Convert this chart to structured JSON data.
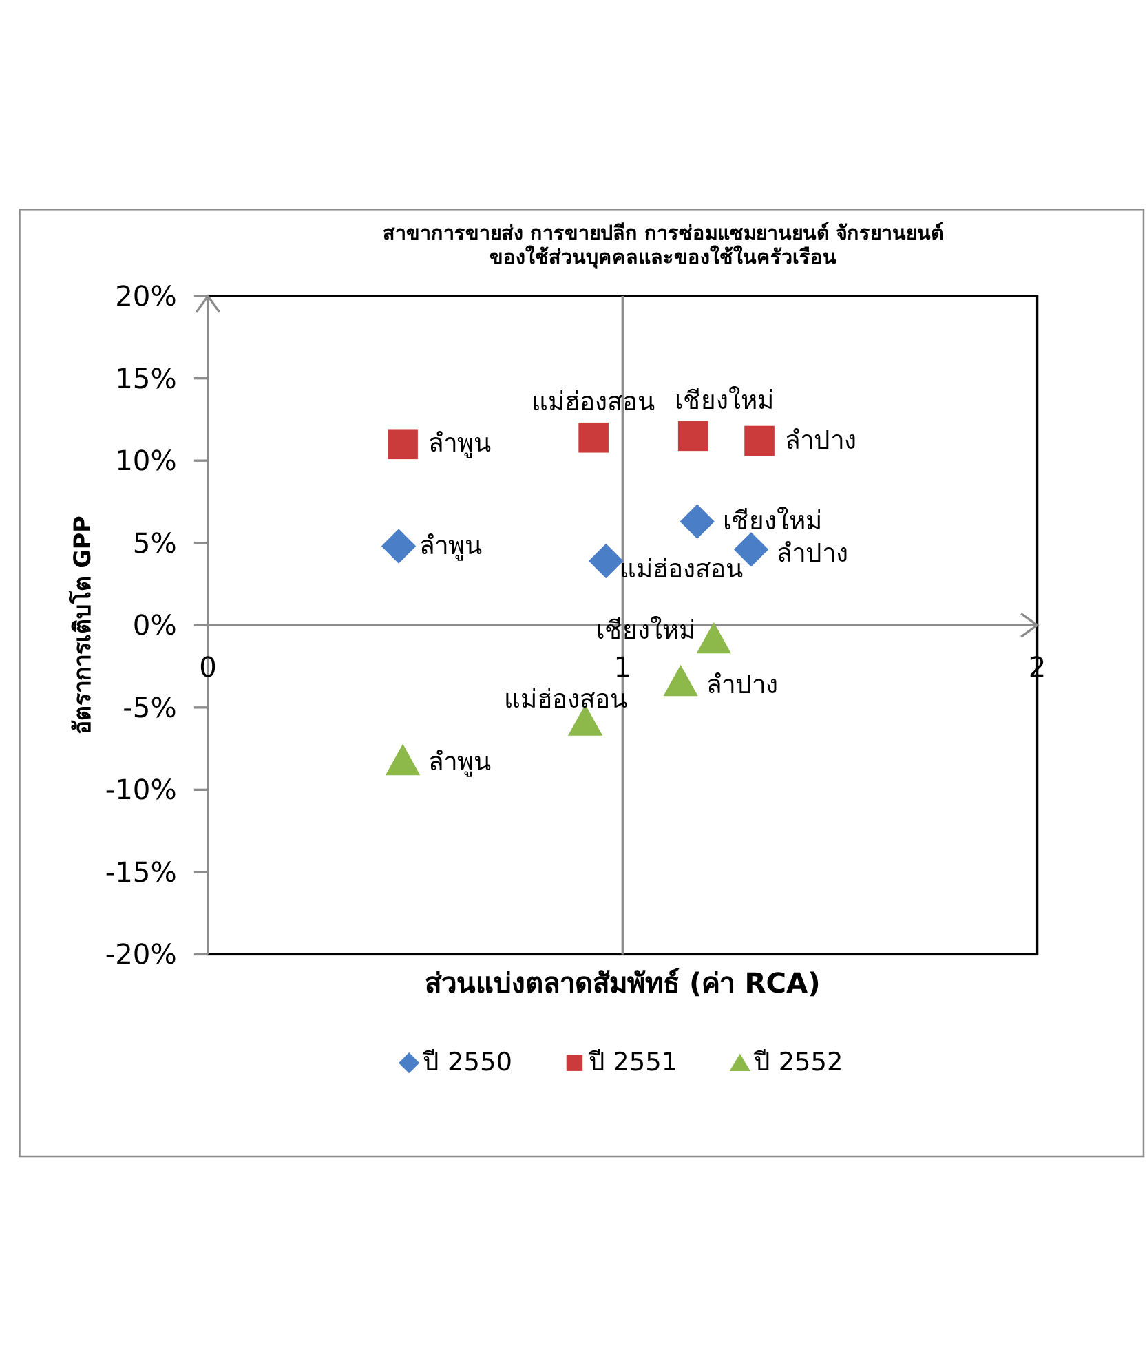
{
  "chart_data": {
    "type": "scatter",
    "title": "สาขาการขายส่ง การขายปลีก การซ่อมแซมยานยนต์ จักรยานยนต์ ของใช้ส่วนบุคคลและของใช้ในครัวเรือน",
    "xlabel": "ส่วนแบ่งตลาดสัมพัทธ์ (ค่า RCA)",
    "ylabel": "อัตราการเติบโต GPP",
    "xlim": [
      0,
      2
    ],
    "xticks": [
      0,
      1,
      2
    ],
    "ylim": [
      -20,
      20
    ],
    "yticks": [
      {
        "value": -20,
        "label": "-20%"
      },
      {
        "value": -15,
        "label": "-15%"
      },
      {
        "value": -10,
        "label": "-10%"
      },
      {
        "value": -5,
        "label": "-5%"
      },
      {
        "value": 0,
        "label": "0%"
      },
      {
        "value": 5,
        "label": "5%"
      },
      {
        "value": 10,
        "label": "10%"
      },
      {
        "value": 15,
        "label": "15%"
      },
      {
        "value": 20,
        "label": "20%"
      }
    ],
    "series": [
      {
        "name": "ปี 2550",
        "color": "#4a7fc8",
        "marker": "diamond",
        "x": [
          0.46,
          0.96,
          1.18,
          1.31
        ],
        "values": [
          4.8,
          3.9,
          6.3,
          4.6
        ]
      },
      {
        "name": "ปี 2551",
        "color": "#cc3b3b",
        "marker": "square",
        "x": [
          0.47,
          0.93,
          1.17,
          1.33
        ],
        "values": [
          11.0,
          11.4,
          11.5,
          11.2
        ]
      },
      {
        "name": "ปี 2552",
        "color": "#8db84a",
        "marker": "triangle",
        "x": [
          0.47,
          0.91,
          1.14,
          1.22
        ],
        "values": [
          -8.2,
          -5.8,
          -3.4,
          -0.8
        ]
      }
    ],
    "ref_lines": [
      {
        "axis": "x",
        "value": 1,
        "color": "#8c8c8c"
      }
    ],
    "annotations": [
      {
        "text": "ลำพูน",
        "x": 0.46,
        "y": 4.8
      },
      {
        "text": "แม่ฮ่องสอน",
        "x": 0.96,
        "y": 3.9
      },
      {
        "text": "เชียงใหม่",
        "x": 1.18,
        "y": 6.3
      },
      {
        "text": "ลำปาง",
        "x": 1.31,
        "y": 4.6
      },
      {
        "text": "ลำพูน",
        "x": 0.47,
        "y": 11.0
      },
      {
        "text": "แม่ฮ่องสอน",
        "x": 0.93,
        "y": 11.4
      },
      {
        "text": "เชียงใหม่",
        "x": 1.17,
        "y": 11.5
      },
      {
        "text": "ลำปาง",
        "x": 1.33,
        "y": 11.2
      },
      {
        "text": "ลำพูน",
        "x": 0.47,
        "y": -8.2
      },
      {
        "text": "แม่ฮ่องสอน",
        "x": 0.91,
        "y": -5.8
      },
      {
        "text": "ลำปาง",
        "x": 1.14,
        "y": -3.4
      },
      {
        "text": "เชียงใหม่",
        "x": 1.22,
        "y": -0.8
      }
    ],
    "legend": "bottom"
  }
}
